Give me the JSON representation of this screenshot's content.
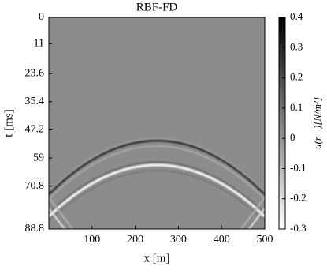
{
  "chart_data": {
    "type": "heatmap",
    "title": "RBF-FD",
    "x_label": "x [m]",
    "y_label": "t [ms]",
    "xlim": [
      0,
      500
    ],
    "xticks": [
      100,
      200,
      300,
      400,
      500
    ],
    "ylim": [
      0,
      88.8
    ],
    "yticks": [
      0,
      11,
      23.6,
      35.4,
      47.2,
      59,
      70.8,
      88.8
    ],
    "y_inverted": true,
    "colorbar": {
      "label": "u(r⃗)[N/m²]",
      "lim": [
        -0.3,
        0.4
      ],
      "ticks": [
        0.4,
        0.3,
        0.2,
        0.1,
        0,
        -0.1,
        -0.2,
        -0.3
      ],
      "colormap": "gray"
    }
  }
}
